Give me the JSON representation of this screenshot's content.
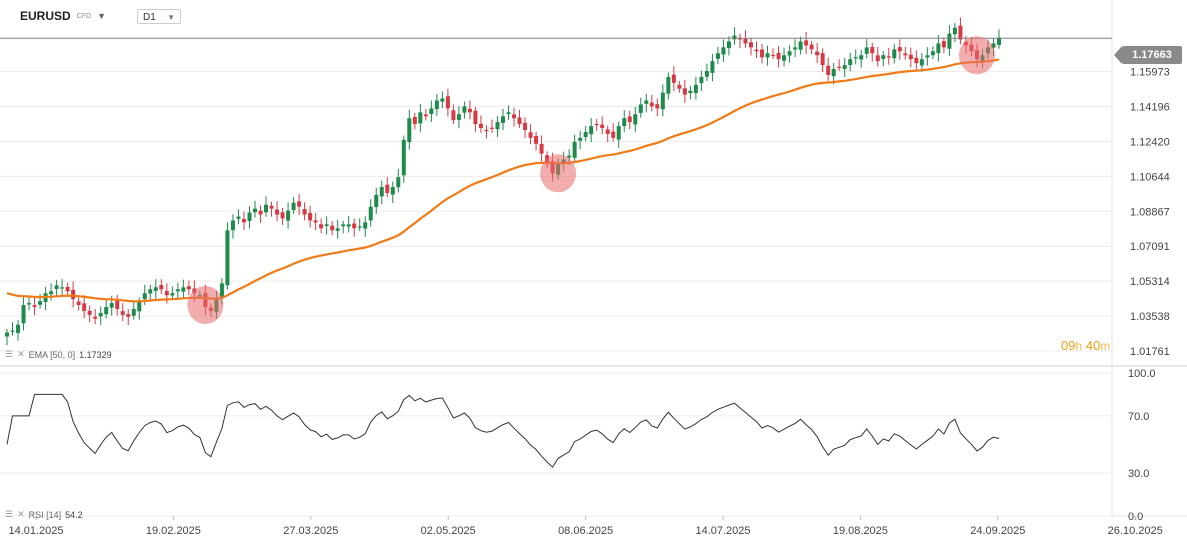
{
  "header": {
    "symbol": "EURUSD",
    "instrument_type": "CFD",
    "timeframe": "D1"
  },
  "last_price": "1.17663",
  "timer": {
    "hours": "09",
    "hours_unit": "h",
    "minutes": "40",
    "minutes_unit": "m"
  },
  "indicators": {
    "ema": {
      "label": "EMA [50, 0]",
      "value": "1.17329",
      "color": "#f07a16"
    },
    "rsi": {
      "label": "RSI [14]",
      "value": "54.2",
      "color": "#333333"
    }
  },
  "icons": [
    "list-icon",
    "close-icon"
  ],
  "colors": {
    "bull": "#1e8a4c",
    "bear": "#d63a45",
    "highlight": "#e86b6b"
  },
  "chart_data": [
    {
      "type": "candlestick",
      "title": "EURUSD D1",
      "ylim": [
        1.01,
        1.19
      ],
      "y_ticks": [
        "1.15973",
        "1.14196",
        "1.12420",
        "1.10644",
        "1.08867",
        "1.07091",
        "1.05314",
        "1.03538",
        "1.01761"
      ],
      "x_ticks": [
        "14.01.2025",
        "19.02.2025",
        "27.03.2025",
        "02.05.2025",
        "08.06.2025",
        "14.07.2025",
        "19.08.2025",
        "24.09.2025",
        "26.10.2025"
      ],
      "close": [
        1.027,
        1.028,
        1.031,
        1.041,
        1.042,
        1.04,
        1.043,
        1.047,
        1.048,
        1.051,
        1.05,
        1.048,
        1.044,
        1.041,
        1.038,
        1.036,
        1.034,
        1.037,
        1.04,
        1.042,
        1.039,
        1.036,
        1.035,
        1.039,
        1.043,
        1.047,
        1.049,
        1.05,
        1.049,
        1.046,
        1.047,
        1.049,
        1.05,
        1.049,
        1.047,
        1.046,
        1.04,
        1.038,
        1.044,
        1.052,
        1.079,
        1.084,
        1.086,
        1.083,
        1.088,
        1.09,
        1.087,
        1.092,
        1.09,
        1.087,
        1.085,
        1.089,
        1.093,
        1.091,
        1.087,
        1.084,
        1.083,
        1.08,
        1.082,
        1.079,
        1.08,
        1.082,
        1.082,
        1.08,
        1.081,
        1.083,
        1.091,
        1.097,
        1.101,
        1.098,
        1.101,
        1.106,
        1.125,
        1.136,
        1.133,
        1.139,
        1.137,
        1.141,
        1.145,
        1.146,
        1.141,
        1.135,
        1.138,
        1.142,
        1.139,
        1.133,
        1.131,
        1.13,
        1.131,
        1.134,
        1.137,
        1.139,
        1.136,
        1.133,
        1.13,
        1.126,
        1.123,
        1.118,
        1.113,
        1.108,
        1.113,
        1.115,
        1.117,
        1.124,
        1.126,
        1.129,
        1.132,
        1.133,
        1.131,
        1.128,
        1.126,
        1.132,
        1.136,
        1.134,
        1.138,
        1.143,
        1.145,
        1.142,
        1.141,
        1.149,
        1.157,
        1.154,
        1.151,
        1.148,
        1.15,
        1.153,
        1.157,
        1.16,
        1.165,
        1.169,
        1.172,
        1.175,
        1.178,
        1.176,
        1.174,
        1.172,
        1.17,
        1.167,
        1.169,
        1.168,
        1.166,
        1.168,
        1.17,
        1.172,
        1.175,
        1.173,
        1.171,
        1.168,
        1.163,
        1.158,
        1.161,
        1.162,
        1.163,
        1.166,
        1.167,
        1.168,
        1.172,
        1.169,
        1.165,
        1.168,
        1.167,
        1.171,
        1.17,
        1.168,
        1.166,
        1.164,
        1.166,
        1.168,
        1.17,
        1.174,
        1.172,
        1.179,
        1.182,
        1.176,
        1.173,
        1.17,
        1.166,
        1.168,
        1.172,
        1.174,
        1.177
      ],
      "ema": {
        "name": "EMA [50, 0]",
        "start": 1.047,
        "fixed_value": 1.17329
      },
      "highlight_markers": [
        1.041,
        1.108,
        1.168
      ]
    },
    {
      "type": "line",
      "title": "RSI [14]",
      "ylim": [
        0,
        100
      ],
      "y_ticks": [
        "100.0",
        "70.0",
        "30.0",
        "0.0"
      ],
      "series_name": "RSI [14]",
      "current": 54.2
    }
  ]
}
